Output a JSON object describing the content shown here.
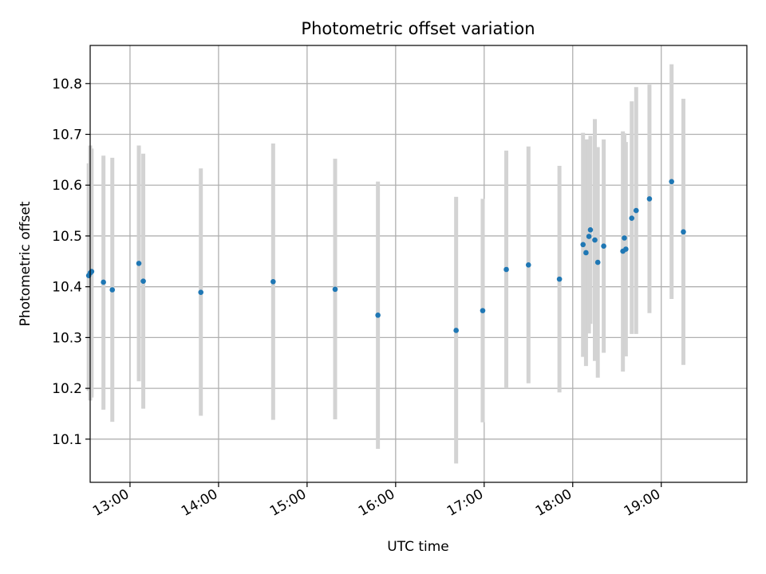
{
  "chart_data": {
    "type": "scatter",
    "title": "Photometric offset variation",
    "xlabel": "UTC time",
    "ylabel": "Photometric offset",
    "x_ticks": [
      "13:00",
      "14:00",
      "15:00",
      "16:00",
      "17:00",
      "18:00",
      "19:00"
    ],
    "y_ticks": [
      "10.1",
      "10.2",
      "10.3",
      "10.4",
      "10.5",
      "10.6",
      "10.7",
      "10.8"
    ],
    "xlim": [
      "12:33",
      "19:58"
    ],
    "ylim": [
      10.015,
      10.875
    ],
    "grid": true,
    "marker_color": "#1f77b4",
    "errorbar_color": "#d3d3d3",
    "points": [
      {
        "x": "12:32",
        "y": 10.422,
        "y_low": 10.195,
        "y_high": 10.643
      },
      {
        "x": "12:33",
        "y": 10.427,
        "y_low": 10.176,
        "y_high": 10.678
      },
      {
        "x": "12:34",
        "y": 10.43,
        "y_low": 10.182,
        "y_high": 10.672
      },
      {
        "x": "12:42",
        "y": 10.409,
        "y_low": 10.158,
        "y_high": 10.658
      },
      {
        "x": "12:48",
        "y": 10.394,
        "y_low": 10.134,
        "y_high": 10.654
      },
      {
        "x": "13:06",
        "y": 10.446,
        "y_low": 10.214,
        "y_high": 10.678
      },
      {
        "x": "13:09",
        "y": 10.411,
        "y_low": 10.16,
        "y_high": 10.662
      },
      {
        "x": "13:48",
        "y": 10.389,
        "y_low": 10.146,
        "y_high": 10.633
      },
      {
        "x": "14:37",
        "y": 10.41,
        "y_low": 10.138,
        "y_high": 10.682
      },
      {
        "x": "15:19",
        "y": 10.395,
        "y_low": 10.139,
        "y_high": 10.652
      },
      {
        "x": "15:48",
        "y": 10.344,
        "y_low": 10.081,
        "y_high": 10.607
      },
      {
        "x": "16:41",
        "y": 10.314,
        "y_low": 10.052,
        "y_high": 10.577
      },
      {
        "x": "16:59",
        "y": 10.353,
        "y_low": 10.133,
        "y_high": 10.573
      },
      {
        "x": "17:15",
        "y": 10.434,
        "y_low": 10.2,
        "y_high": 10.668
      },
      {
        "x": "17:30",
        "y": 10.443,
        "y_low": 10.21,
        "y_high": 10.676
      },
      {
        "x": "17:51",
        "y": 10.415,
        "y_low": 10.192,
        "y_high": 10.638
      },
      {
        "x": "18:07",
        "y": 10.483,
        "y_low": 10.262,
        "y_high": 10.703
      },
      {
        "x": "18:09",
        "y": 10.467,
        "y_low": 10.244,
        "y_high": 10.69
      },
      {
        "x": "18:11",
        "y": 10.499,
        "y_low": 10.308,
        "y_high": 10.69
      },
      {
        "x": "18:12",
        "y": 10.512,
        "y_low": 10.327,
        "y_high": 10.697
      },
      {
        "x": "18:15",
        "y": 10.492,
        "y_low": 10.254,
        "y_high": 10.73
      },
      {
        "x": "18:17",
        "y": 10.448,
        "y_low": 10.221,
        "y_high": 10.675
      },
      {
        "x": "18:21",
        "y": 10.48,
        "y_low": 10.27,
        "y_high": 10.69
      },
      {
        "x": "18:34",
        "y": 10.47,
        "y_low": 10.233,
        "y_high": 10.706
      },
      {
        "x": "18:35",
        "y": 10.496,
        "y_low": 10.275,
        "y_high": 10.702
      },
      {
        "x": "18:36",
        "y": 10.474,
        "y_low": 10.263,
        "y_high": 10.685
      },
      {
        "x": "18:40",
        "y": 10.535,
        "y_low": 10.307,
        "y_high": 10.765
      },
      {
        "x": "18:43",
        "y": 10.55,
        "y_low": 10.307,
        "y_high": 10.793
      },
      {
        "x": "18:52",
        "y": 10.573,
        "y_low": 10.348,
        "y_high": 10.798
      },
      {
        "x": "19:07",
        "y": 10.607,
        "y_low": 10.376,
        "y_high": 10.838
      },
      {
        "x": "19:15",
        "y": 10.508,
        "y_low": 10.246,
        "y_high": 10.77
      }
    ]
  }
}
